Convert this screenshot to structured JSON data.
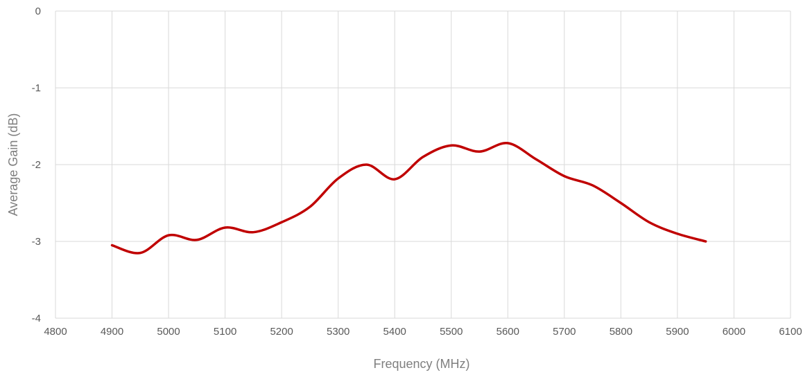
{
  "chart_data": {
    "type": "line",
    "title": "",
    "xlabel": "Frequency (MHz)",
    "ylabel": "Average Gain (dB)",
    "xlim": [
      4800,
      6100
    ],
    "ylim": [
      -4,
      0
    ],
    "x_ticks": [
      4800,
      4900,
      5000,
      5100,
      5200,
      5300,
      5400,
      5500,
      5600,
      5700,
      5800,
      5900,
      6000,
      6100
    ],
    "y_ticks": [
      0,
      -1,
      -2,
      -3,
      -4
    ],
    "grid": true,
    "legend": "none",
    "smooth": true,
    "series": [
      {
        "color": "#c00000",
        "x": [
          4900,
          4950,
          5000,
          5050,
          5100,
          5150,
          5200,
          5250,
          5300,
          5350,
          5400,
          5450,
          5500,
          5550,
          5600,
          5650,
          5700,
          5750,
          5800,
          5850,
          5900,
          5950
        ],
        "y": [
          -3.05,
          -3.15,
          -2.92,
          -2.98,
          -2.82,
          -2.88,
          -2.75,
          -2.55,
          -2.18,
          -2.0,
          -2.19,
          -1.9,
          -1.75,
          -1.83,
          -1.72,
          -1.93,
          -2.15,
          -2.27,
          -2.5,
          -2.75,
          -2.9,
          -3.0
        ]
      }
    ]
  }
}
